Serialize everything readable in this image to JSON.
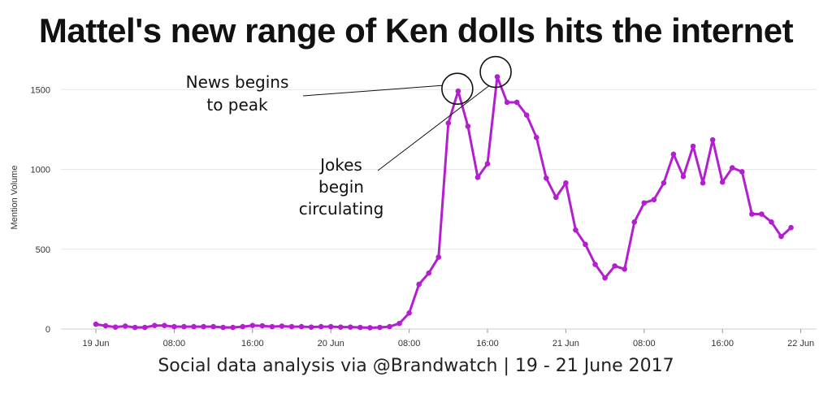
{
  "title": "Mattel's new range of Ken dolls hits the internet",
  "subtitle": "Social data analysis via @Brandwatch | 19 - 21 June 2017",
  "colors": {
    "line": "#b31fcf",
    "grid": "#e6e6e6",
    "annotation": "#111111"
  },
  "chart_data": {
    "type": "line",
    "xlabel": "",
    "ylabel": "Mention Volume",
    "ylim": [
      0,
      1600
    ],
    "yticks": [
      0,
      500,
      1000,
      1500
    ],
    "grid": true,
    "x_tick_labels": [
      {
        "index": 0,
        "label": "19 Jun"
      },
      {
        "index": 8,
        "label": "08:00"
      },
      {
        "index": 16,
        "label": "16:00"
      },
      {
        "index": 24,
        "label": "20 Jun"
      },
      {
        "index": 32,
        "label": "08:00"
      },
      {
        "index": 40,
        "label": "16:00"
      },
      {
        "index": 48,
        "label": "21 Jun"
      },
      {
        "index": 56,
        "label": "08:00"
      },
      {
        "index": 64,
        "label": "16:00"
      },
      {
        "index": 72,
        "label": "22 Jun"
      }
    ],
    "series": [
      {
        "values": [
          30,
          20,
          12,
          18,
          10,
          10,
          22,
          22,
          15,
          15,
          15,
          15,
          15,
          10,
          10,
          15,
          22,
          20,
          15,
          18,
          15,
          15,
          12,
          15,
          15,
          12,
          12,
          10,
          8,
          10,
          15,
          35,
          100,
          280,
          350,
          450,
          1290,
          1490,
          1270,
          950,
          1035,
          1580,
          1420,
          1420,
          1340,
          1200,
          945,
          825,
          915,
          620,
          530,
          405,
          320,
          395,
          375,
          670,
          790,
          810,
          915,
          1095,
          955,
          1145,
          915,
          1185,
          920,
          1010,
          985,
          720,
          720,
          670,
          580,
          635
        ]
      }
    ],
    "annotations": [
      {
        "lines": [
          "News begins",
          "to peak"
        ],
        "target_index": 37
      },
      {
        "lines": [
          "Jokes",
          "begin",
          "circulating"
        ],
        "target_index": 41
      }
    ]
  }
}
